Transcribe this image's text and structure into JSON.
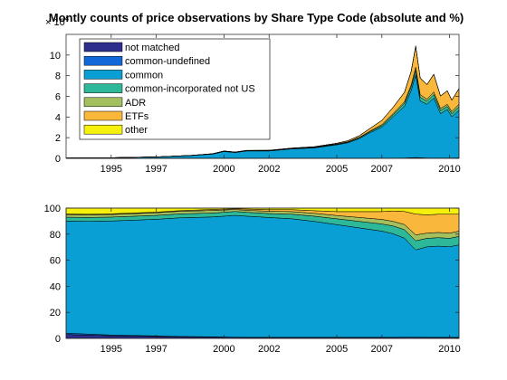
{
  "title": "Montly counts of price observations by Share Type Code (absolute and %)",
  "colors": {
    "not matched": "#2e2e8c",
    "common-undefined": "#1268d8",
    "common": "#0a9fd4",
    "common-incorporated not US": "#2db89a",
    "ADR": "#a3bf5e",
    "ETFs": "#f9b73c",
    "other": "#f5f00c"
  },
  "chart_data": [
    {
      "type": "area",
      "stacked": true,
      "exponent_label": "× 10",
      "xlim": [
        1993.0,
        2010.42
      ],
      "ylim": [
        0,
        12
      ],
      "xticks": [
        1995,
        1997,
        2000,
        2002,
        2005,
        2007,
        2010
      ],
      "yticks": [
        0,
        2,
        4,
        6,
        8,
        10
      ],
      "legend_location": "upper-left",
      "x": [
        1993.0,
        1995.0,
        1997.0,
        1998.5,
        1999.5,
        2000.0,
        2000.5,
        2001.0,
        2002.0,
        2003.0,
        2004.0,
        2005.0,
        2005.5,
        2006.0,
        2006.5,
        2007.0,
        2007.5,
        2008.0,
        2008.3,
        2008.5,
        2008.7,
        2009.0,
        2009.3,
        2009.6,
        2009.9,
        2010.1,
        2010.42
      ],
      "series": [
        {
          "name": "not matched",
          "values": [
            0.01,
            0.01,
            0.01,
            0.01,
            0.01,
            0.01,
            0.01,
            0.01,
            0.01,
            0.01,
            0.01,
            0.01,
            0.01,
            0.01,
            0.01,
            0.02,
            0.02,
            0.03,
            0.05,
            0.07,
            0.05,
            0.03,
            0.03,
            0.03,
            0.03,
            0.03,
            0.04
          ]
        },
        {
          "name": "common-undefined",
          "values": [
            0,
            0,
            0,
            0,
            0,
            0,
            0,
            0,
            0,
            0,
            0,
            0,
            0,
            0,
            0,
            0,
            0,
            0,
            0.01,
            0.01,
            0.01,
            0,
            0,
            0,
            0,
            0,
            0
          ]
        },
        {
          "name": "common",
          "values": [
            0.02,
            0.05,
            0.12,
            0.25,
            0.4,
            0.65,
            0.55,
            0.7,
            0.7,
            0.9,
            1.0,
            1.3,
            1.5,
            1.9,
            2.5,
            3.0,
            4.0,
            5.0,
            6.5,
            8.0,
            5.5,
            5.2,
            5.8,
            4.3,
            4.7,
            4.0,
            4.6
          ]
        },
        {
          "name": "common-incorporated not US",
          "values": [
            0,
            0,
            0.01,
            0.01,
            0.02,
            0.02,
            0.02,
            0.02,
            0.03,
            0.03,
            0.04,
            0.05,
            0.06,
            0.08,
            0.1,
            0.15,
            0.2,
            0.3,
            0.35,
            0.45,
            0.35,
            0.3,
            0.35,
            0.3,
            0.3,
            0.3,
            0.35
          ]
        },
        {
          "name": "ADR",
          "values": [
            0,
            0,
            0,
            0.01,
            0.01,
            0.02,
            0.02,
            0.02,
            0.02,
            0.02,
            0.03,
            0.03,
            0.04,
            0.05,
            0.07,
            0.1,
            0.12,
            0.15,
            0.2,
            0.3,
            0.25,
            0.2,
            0.25,
            0.2,
            0.2,
            0.2,
            0.25
          ]
        },
        {
          "name": "ETFs",
          "values": [
            0,
            0,
            0,
            0,
            0.01,
            0.01,
            0.01,
            0.02,
            0.02,
            0.03,
            0.04,
            0.07,
            0.1,
            0.15,
            0.25,
            0.4,
            0.6,
            0.9,
            1.3,
            2.0,
            1.6,
            1.4,
            1.7,
            1.2,
            1.3,
            1.1,
            1.5
          ]
        },
        {
          "name": "other",
          "values": [
            0,
            0,
            0,
            0,
            0,
            0,
            0,
            0,
            0,
            0,
            0,
            0,
            0,
            0,
            0.01,
            0.01,
            0.02,
            0.02,
            0.04,
            0.08,
            0.04,
            0.03,
            0.03,
            0.02,
            0.02,
            0.02,
            0.03
          ]
        }
      ]
    },
    {
      "type": "area",
      "stacked": true,
      "percent": true,
      "xlim": [
        1993.0,
        2010.42
      ],
      "ylim": [
        0,
        100
      ],
      "xticks": [
        1995,
        1997,
        2000,
        2002,
        2005,
        2007,
        2010
      ],
      "yticks": [
        0,
        20,
        40,
        60,
        80,
        100
      ],
      "x": [
        1993.0,
        1994.0,
        1995.0,
        1997.0,
        1998.0,
        1999.5,
        2000.5,
        2001.0,
        2002.0,
        2003.0,
        2004.0,
        2005.0,
        2006.0,
        2007.0,
        2007.5,
        2008.0,
        2008.5,
        2009.0,
        2009.5,
        2010.0,
        2010.42
      ],
      "series": [
        {
          "name": "not matched",
          "values": [
            3,
            2.5,
            2,
            1.5,
            1.2,
            1,
            0.8,
            0.7,
            0.7,
            0.7,
            0.7,
            0.7,
            0.7,
            0.7,
            0.7,
            0.8,
            0.8,
            0.7,
            0.7,
            0.7,
            0.7
          ]
        },
        {
          "name": "common-undefined",
          "values": [
            1,
            0.8,
            0.6,
            0.4,
            0.3,
            0.2,
            0.1,
            0.1,
            0.1,
            0.1,
            0.1,
            0.1,
            0.1,
            0.1,
            0.1,
            0.1,
            0.1,
            0.1,
            0.1,
            0.1,
            0.1
          ]
        },
        {
          "name": "common",
          "values": [
            86,
            86.5,
            87.5,
            89.5,
            91,
            92,
            93.5,
            93,
            92,
            91,
            89,
            86.5,
            84,
            81.5,
            79.5,
            76,
            67,
            69.5,
            70,
            69.5,
            71
          ]
        },
        {
          "name": "common-incorporated not US",
          "values": [
            3,
            3,
            3,
            3,
            3,
            3,
            3,
            3,
            3,
            3.5,
            4,
            4.5,
            5,
            5.5,
            6,
            6.5,
            7,
            6.5,
            6.5,
            6.5,
            6.5
          ]
        },
        {
          "name": "ADR",
          "values": [
            2,
            2,
            2,
            2,
            2,
            2,
            1.5,
            1.5,
            1.8,
            2,
            2.2,
            2.5,
            3,
            3.5,
            3.5,
            4,
            4.5,
            4,
            4,
            4,
            4
          ]
        },
        {
          "name": "ETFs",
          "values": [
            0.5,
            0.5,
            0.5,
            0.5,
            0.5,
            0.8,
            0.6,
            1,
            1.2,
            1.5,
            2,
            3,
            4.5,
            6,
            8,
            10,
            16,
            14,
            14,
            14.5,
            13
          ]
        },
        {
          "name": "other",
          "values": [
            4.5,
            4.7,
            4.4,
            3.1,
            2,
            1,
            0.5,
            0.7,
            1.2,
            1.2,
            2,
            2.7,
            2.7,
            2.7,
            2.2,
            2.6,
            4.6,
            5.2,
            4.7,
            4.7,
            4.7
          ]
        }
      ]
    }
  ]
}
